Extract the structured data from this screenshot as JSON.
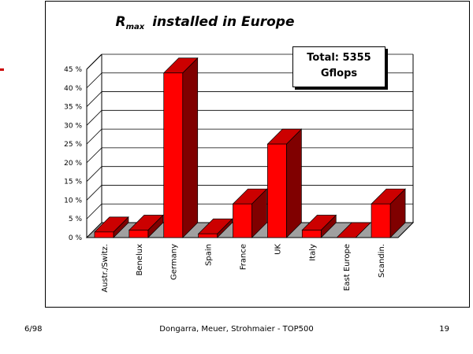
{
  "title": {
    "main": "R",
    "subscript": "max",
    "rest": "installed in Europe"
  },
  "total_box": {
    "line1": "Total: 5355",
    "line2": "Gflops"
  },
  "footer": {
    "left": "6/98",
    "center": "Dongarra, Meuer, Strohmaier - TOP500",
    "right": "19"
  },
  "colors": {
    "bar_front": "#ff0000",
    "bar_top": "#cc0000",
    "bar_side": "#800000",
    "floor": "#a0a0a0",
    "slide_mark": "#cc0000"
  },
  "chart_data": {
    "type": "bar",
    "title": "R max installed in Europe",
    "categories": [
      "Austr./Switz.",
      "Benelux",
      "Germany",
      "Spain",
      "France",
      "UK",
      "Italy",
      "East Europe",
      "Scandin."
    ],
    "values": [
      1.5,
      2.0,
      44.0,
      1.0,
      9.0,
      25.0,
      2.0,
      0.0,
      9.0
    ],
    "value_unit": "%",
    "ytick_labels": [
      "0 %",
      "5 %",
      "10 %",
      "15 %",
      "20 %",
      "25 %",
      "30 %",
      "35 %",
      "40 %",
      "45 %"
    ],
    "ylim": [
      0,
      45
    ],
    "grid": true,
    "three_d": true
  }
}
